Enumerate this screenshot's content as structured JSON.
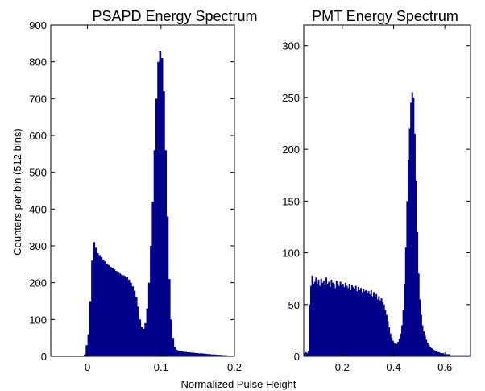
{
  "figure": {
    "xlabel": "Normalized Pulse Height",
    "ylabel": "Counters per bin (512 bins)"
  },
  "chart_data": [
    {
      "type": "bar",
      "title": "PSAPD Energy Spectrum",
      "xlim": [
        -0.05,
        0.2
      ],
      "ylim": [
        0,
        900
      ],
      "xticks": [
        0,
        0.1,
        0.2
      ],
      "xtick_labels": [
        "0",
        "0.1",
        "0.2"
      ],
      "yticks": [
        0,
        100,
        200,
        300,
        400,
        500,
        600,
        700,
        800,
        900
      ],
      "ytick_labels": [
        "0",
        "100",
        "200",
        "300",
        "400",
        "500",
        "600",
        "700",
        "800",
        "900"
      ],
      "bar_color": "#00008b",
      "bin_width": 0.0025,
      "x": [
        -0.005,
        -0.0025,
        0.0,
        0.0025,
        0.005,
        0.0075,
        0.01,
        0.0125,
        0.015,
        0.0175,
        0.02,
        0.0225,
        0.025,
        0.0275,
        0.03,
        0.0325,
        0.035,
        0.0375,
        0.04,
        0.0425,
        0.045,
        0.0475,
        0.05,
        0.0525,
        0.055,
        0.0575,
        0.06,
        0.0625,
        0.065,
        0.0675,
        0.07,
        0.0725,
        0.075,
        0.0775,
        0.08,
        0.0825,
        0.085,
        0.0875,
        0.09,
        0.0925,
        0.095,
        0.0975,
        0.1,
        0.1025,
        0.105,
        0.1075,
        0.11,
        0.1125,
        0.115,
        0.1175,
        0.12,
        0.1225,
        0.125,
        0.1275,
        0.13,
        0.1325,
        0.135,
        0.1375,
        0.14,
        0.1425,
        0.145,
        0.1475,
        0.15,
        0.1525,
        0.155,
        0.1575,
        0.16,
        0.1625,
        0.165,
        0.1675,
        0.17,
        0.1725,
        0.175,
        0.1775,
        0.18,
        0.1825,
        0.185,
        0.1875,
        0.19,
        0.1925,
        0.195,
        0.1975
      ],
      "values": [
        5,
        30,
        60,
        150,
        260,
        310,
        295,
        280,
        275,
        270,
        262,
        258,
        252,
        248,
        243,
        240,
        236,
        232,
        228,
        225,
        222,
        220,
        218,
        214,
        208,
        200,
        190,
        178,
        160,
        135,
        100,
        80,
        75,
        90,
        130,
        200,
        300,
        420,
        560,
        700,
        800,
        830,
        810,
        720,
        560,
        380,
        210,
        100,
        50,
        25,
        18,
        15,
        14,
        13,
        12,
        12,
        11,
        11,
        10,
        10,
        9,
        9,
        8,
        8,
        8,
        7,
        7,
        6,
        6,
        5,
        5,
        5,
        4,
        4,
        4,
        3,
        3,
        3,
        2,
        2,
        2,
        2
      ]
    },
    {
      "type": "bar",
      "title": "PMT Energy Spectrum",
      "xlim": [
        0.05,
        0.7
      ],
      "ylim": [
        0,
        320
      ],
      "xticks": [
        0.2,
        0.4,
        0.6
      ],
      "xtick_labels": [
        "0.2",
        "0.4",
        "0.6"
      ],
      "yticks": [
        0,
        50,
        100,
        150,
        200,
        250,
        300
      ],
      "ytick_labels": [
        "0",
        "50",
        "100",
        "150",
        "200",
        "250",
        "300"
      ],
      "bar_color": "#00008b",
      "bin_width": 0.005,
      "x": [
        0.05,
        0.055,
        0.06,
        0.065,
        0.07,
        0.075,
        0.08,
        0.085,
        0.09,
        0.095,
        0.1,
        0.105,
        0.11,
        0.115,
        0.12,
        0.125,
        0.13,
        0.135,
        0.14,
        0.145,
        0.15,
        0.155,
        0.16,
        0.165,
        0.17,
        0.175,
        0.18,
        0.185,
        0.19,
        0.195,
        0.2,
        0.205,
        0.21,
        0.215,
        0.22,
        0.225,
        0.23,
        0.235,
        0.24,
        0.245,
        0.25,
        0.255,
        0.26,
        0.265,
        0.27,
        0.275,
        0.28,
        0.285,
        0.29,
        0.295,
        0.3,
        0.305,
        0.31,
        0.315,
        0.32,
        0.325,
        0.33,
        0.335,
        0.34,
        0.345,
        0.35,
        0.355,
        0.36,
        0.365,
        0.37,
        0.375,
        0.38,
        0.385,
        0.39,
        0.395,
        0.4,
        0.405,
        0.41,
        0.415,
        0.42,
        0.425,
        0.43,
        0.435,
        0.44,
        0.445,
        0.45,
        0.455,
        0.46,
        0.465,
        0.47,
        0.475,
        0.48,
        0.485,
        0.49,
        0.495,
        0.5,
        0.505,
        0.51,
        0.515,
        0.52,
        0.525,
        0.53,
        0.535,
        0.54,
        0.545,
        0.55,
        0.555,
        0.56,
        0.565,
        0.57,
        0.575,
        0.58,
        0.585,
        0.59,
        0.595,
        0.6,
        0.605,
        0.61,
        0.615,
        0.62,
        0.625,
        0.63,
        0.635,
        0.64,
        0.645,
        0.65,
        0.655,
        0.66,
        0.665,
        0.67,
        0.675,
        0.68,
        0.685,
        0.69,
        0.695
      ],
      "values": [
        3,
        4,
        3,
        5,
        50,
        68,
        78,
        70,
        72,
        76,
        70,
        74,
        68,
        75,
        71,
        73,
        69,
        76,
        70,
        72,
        67,
        74,
        71,
        70,
        66,
        73,
        70,
        68,
        72,
        69,
        70,
        67,
        71,
        68,
        66,
        70,
        64,
        69,
        67,
        65,
        68,
        63,
        67,
        64,
        66,
        62,
        65,
        63,
        64,
        61,
        63,
        60,
        64,
        58,
        62,
        57,
        60,
        55,
        58,
        54,
        56,
        52,
        50,
        45,
        40,
        34,
        28,
        22,
        18,
        15,
        13,
        12,
        12,
        14,
        17,
        22,
        30,
        45,
        70,
        105,
        150,
        190,
        220,
        245,
        255,
        250,
        215,
        170,
        120,
        80,
        55,
        40,
        30,
        24,
        20,
        16,
        13,
        11,
        9,
        8,
        7,
        6,
        5,
        5,
        4,
        4,
        3,
        3,
        3,
        2,
        2,
        2,
        2,
        2,
        1,
        1,
        1,
        1,
        1,
        1,
        1,
        1,
        1,
        1,
        1,
        1,
        1,
        1,
        1,
        1
      ]
    }
  ]
}
